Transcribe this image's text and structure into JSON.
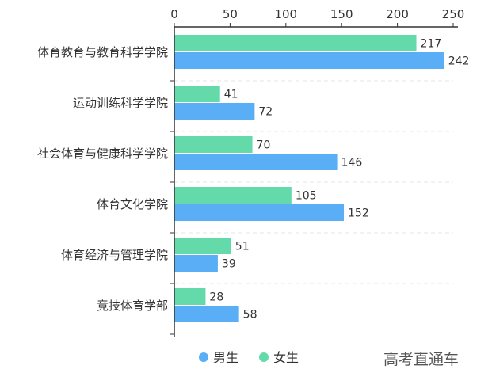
{
  "chart_data": {
    "type": "bar",
    "orientation": "horizontal",
    "categories": [
      "体育教育与教育科学学院",
      "运动训练科学学院",
      "社会体育与健康科学学院",
      "体育文化学院",
      "体育经济与管理学院",
      "竞技体育学部"
    ],
    "series": [
      {
        "name": "女生",
        "values": [
          217,
          41,
          70,
          105,
          51,
          28
        ],
        "color": "#64d9aa"
      },
      {
        "name": "男生",
        "values": [
          242,
          72,
          146,
          152,
          39,
          58
        ],
        "color": "#5aaef5"
      }
    ],
    "xlim": [
      0,
      250
    ],
    "xticks": [
      0,
      50,
      100,
      150,
      200,
      250
    ],
    "xaxis_position": "top",
    "legend": {
      "position": "bottom",
      "order": [
        "男生",
        "女生"
      ]
    },
    "grid": "dashed horizontal separators"
  },
  "watermark": "高考直通车"
}
